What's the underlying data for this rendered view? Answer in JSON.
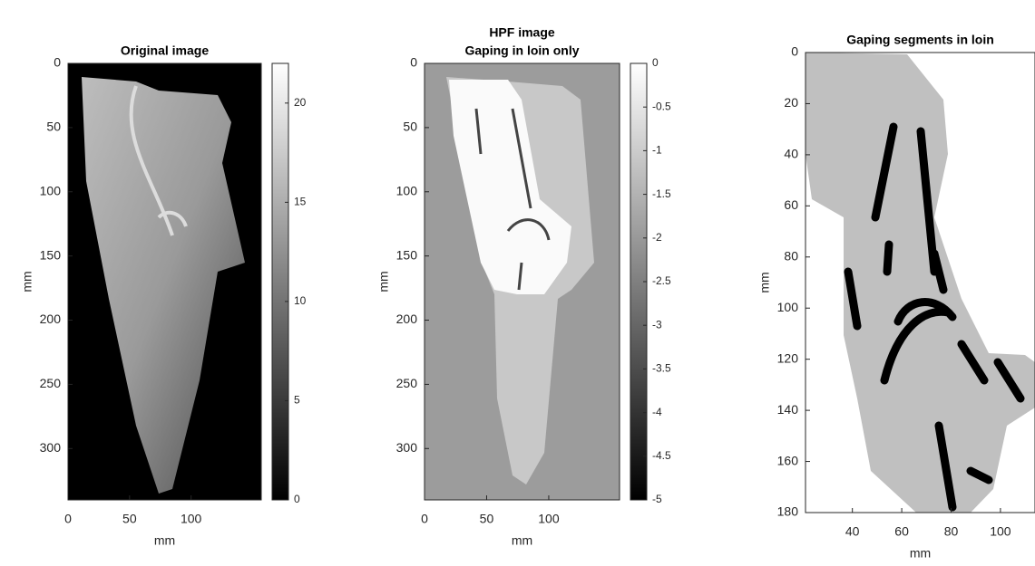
{
  "chart_data": [
    {
      "type": "image",
      "title": [
        "Original image"
      ],
      "xlabel": "mm",
      "ylabel": "mm",
      "y_reversed": true,
      "xlim": [
        0,
        157
      ],
      "ylim": [
        0,
        340
      ],
      "xticks": [
        0,
        50,
        100
      ],
      "yticks": [
        0,
        50,
        100,
        150,
        200,
        250,
        300
      ],
      "colormap": "gray",
      "colorbar": {
        "clim": [
          0,
          22
        ],
        "ticks": [
          0,
          5,
          10,
          15,
          20
        ]
      }
    },
    {
      "type": "image",
      "title": [
        "HPF image",
        "Gaping in loin only"
      ],
      "xlabel": "mm",
      "ylabel": "mm",
      "y_reversed": true,
      "xlim": [
        0,
        157
      ],
      "ylim": [
        0,
        340
      ],
      "xticks": [
        0,
        50,
        100
      ],
      "yticks": [
        0,
        50,
        100,
        150,
        200,
        250,
        300
      ],
      "colormap": "gray",
      "colorbar": {
        "clim": [
          -5,
          0
        ],
        "ticks": [
          0,
          -0.5,
          -1,
          -1.5,
          -2,
          -2.5,
          -3,
          -3.5,
          -4,
          -4.5,
          -5
        ]
      }
    },
    {
      "type": "image",
      "title": [
        "Gaping segments in loin"
      ],
      "xlabel": "mm",
      "ylabel": "mm",
      "y_reversed": true,
      "xlim": [
        21,
        114
      ],
      "ylim": [
        0,
        180
      ],
      "xticks": [
        40,
        60,
        80,
        100
      ],
      "yticks": [
        0,
        20,
        40,
        60,
        80,
        100,
        120,
        140,
        160,
        180
      ],
      "colormap": "gray"
    }
  ]
}
